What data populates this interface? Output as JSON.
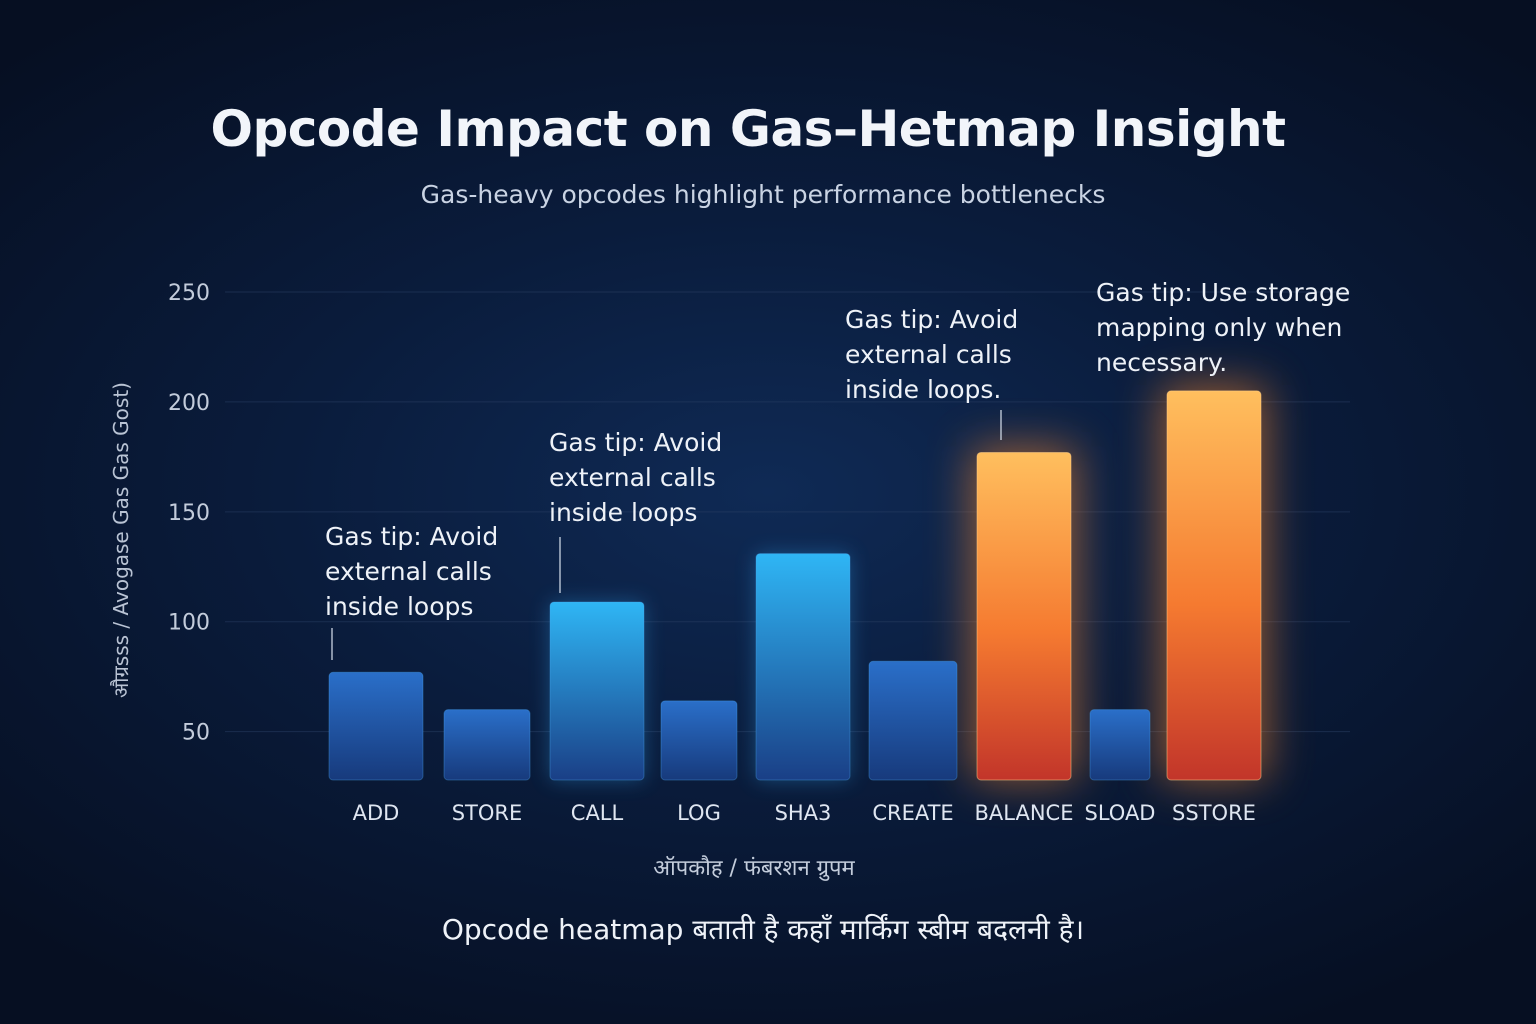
{
  "header": {
    "title": "Opcode Impact on Gas–Hetmap Insight",
    "subtitle": "Gas-heavy opcodes highlight performance bottlenecks"
  },
  "footer": {
    "note": "Opcode heatmap बताती है कहाँ मार्किंग स्बीम बदलनी है।"
  },
  "colors": {
    "cool_top": "#2fb6f5",
    "cool_bottom": "#1a3f86",
    "hot_top": "#ffbf5e",
    "hot_bottom": "#e23d1e",
    "grid": "#2a3f63"
  },
  "chart_data": {
    "type": "bar",
    "title": "Opcode Impact on Gas–Hetmap Insight",
    "subtitle": "Gas-heavy opcodes highlight performance bottlenecks",
    "xlabel": "ऑपकौह / फंबरशन ग्रुपम",
    "ylabel": "औग्रsss / Avogase Gas Gas Gost)",
    "categories": [
      "ADD",
      "STORE",
      "CALL",
      "LOG",
      "SHA3",
      "CREATE",
      "BALANCE",
      "SLOAD",
      "SSTORE"
    ],
    "values": [
      77,
      60,
      109,
      64,
      131,
      82,
      177,
      60,
      205
    ],
    "heat": [
      "cool",
      "cool",
      "cool",
      "cool",
      "cool",
      "cool",
      "hot",
      "cool",
      "hot"
    ],
    "yticks": [
      50,
      100,
      150,
      200,
      250
    ],
    "ylim": [
      28,
      250
    ],
    "grid": true,
    "annotations": [
      {
        "category": "ADD",
        "lines": [
          "Gas tip: Avoid",
          "external calls",
          "inside loops"
        ]
      },
      {
        "category": "CALL",
        "lines": [
          "Gas tip: Avoid",
          "external calls",
          "inside loops"
        ]
      },
      {
        "category": "BALANCE",
        "lines": [
          "Gas tip: Avoid",
          "external calls",
          "inside loops."
        ]
      },
      {
        "category": "SSTORE",
        "lines": [
          "Gas tip: Use storage",
          "mapping only when",
          "necessary."
        ]
      }
    ]
  }
}
